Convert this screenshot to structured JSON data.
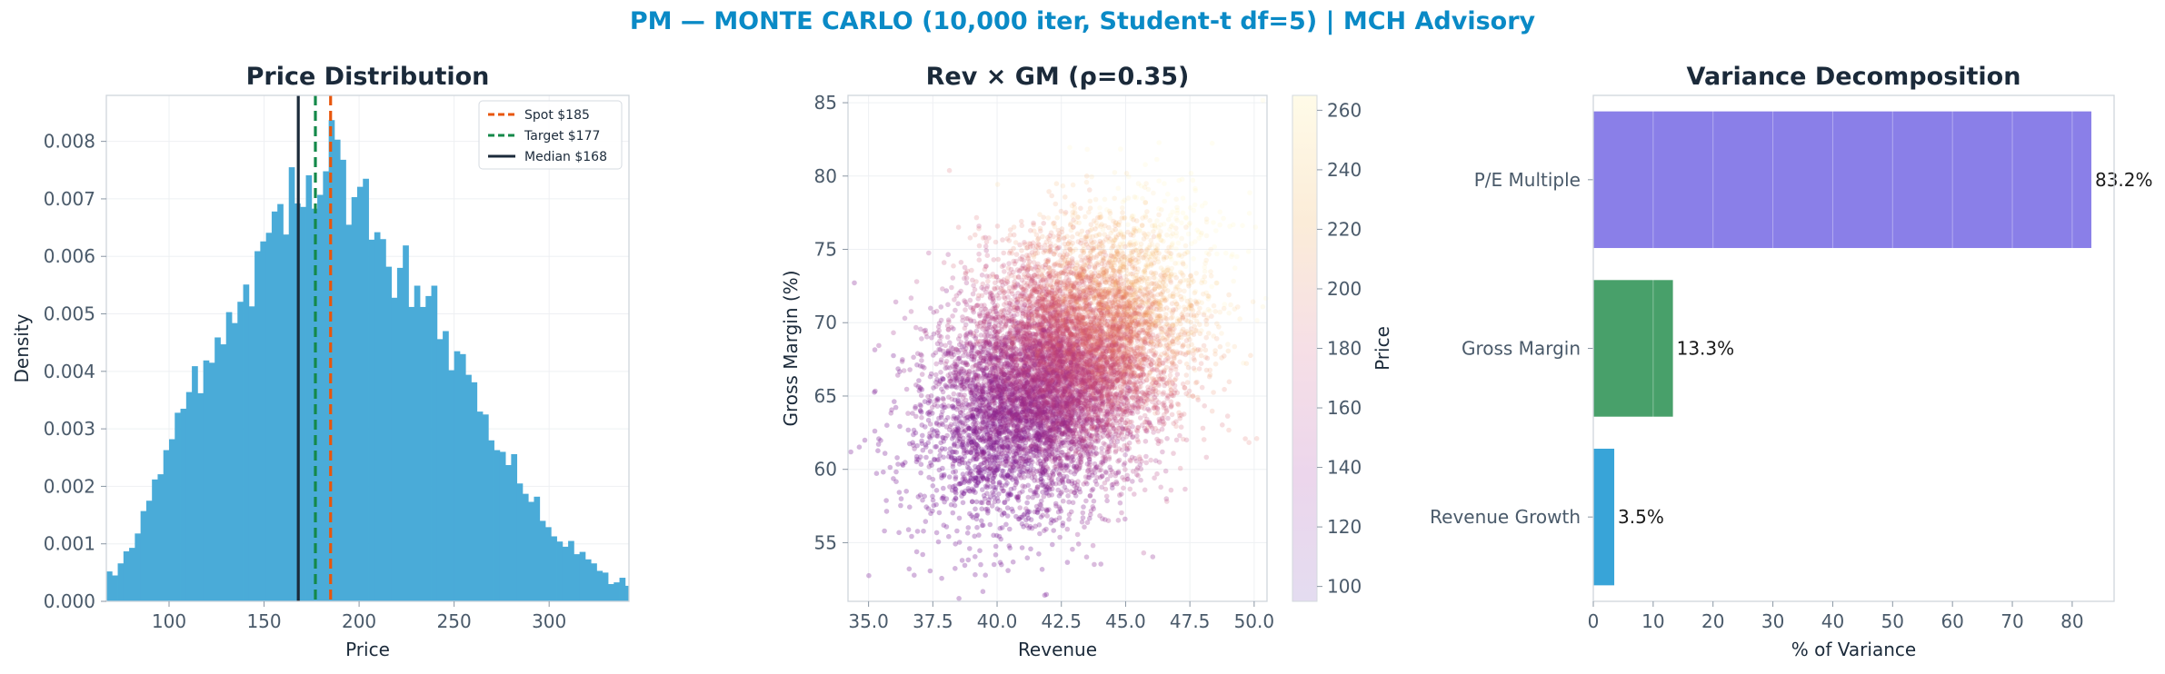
{
  "suptitle": "PM — MONTE CARLO (10,000 iter, Student-t df=5) | MCH Advisory",
  "colors": {
    "suptitle": "#0a8ac6",
    "title": "#1b2a3a",
    "tick": "#4a5a6a",
    "hist": "#4aabd8",
    "spot": "#e8560c",
    "target": "#14894a",
    "median": "#1b2a3a",
    "bar_pe": "#8a7fe8",
    "bar_gm": "#48a06a",
    "bar_rev": "#38a4d8"
  },
  "chart_data": [
    {
      "type": "histogram",
      "title": "Price Distribution",
      "xlabel": "Price",
      "ylabel": "Density",
      "xlim": [
        67,
        342
      ],
      "ylim": [
        0,
        0.0088
      ],
      "xticks": [
        100,
        150,
        200,
        250,
        300
      ],
      "yticks": [
        0.0,
        0.001,
        0.002,
        0.003,
        0.004,
        0.005,
        0.006,
        0.007,
        0.008
      ],
      "ytick_labels": [
        "0.000",
        "0.001",
        "0.002",
        "0.003",
        "0.004",
        "0.005",
        "0.006",
        "0.007",
        "0.008"
      ],
      "bin_start": 67,
      "bin_width": 3.0,
      "densities": [
        0.00052,
        0.00045,
        0.00066,
        0.00087,
        0.00093,
        0.00118,
        0.00157,
        0.00175,
        0.00212,
        0.00221,
        0.00263,
        0.00282,
        0.00328,
        0.00335,
        0.00364,
        0.00409,
        0.00362,
        0.00419,
        0.00415,
        0.00459,
        0.00447,
        0.00503,
        0.00484,
        0.00521,
        0.00551,
        0.00513,
        0.00609,
        0.00626,
        0.00641,
        0.00678,
        0.00691,
        0.00638,
        0.00755,
        0.00692,
        0.00686,
        0.00741,
        0.00683,
        0.00707,
        0.00748,
        0.00837,
        0.00803,
        0.00768,
        0.00655,
        0.00703,
        0.00721,
        0.00735,
        0.00629,
        0.00642,
        0.0063,
        0.00582,
        0.00528,
        0.0058,
        0.00619,
        0.00512,
        0.00549,
        0.00512,
        0.00531,
        0.00549,
        0.00456,
        0.0047,
        0.00402,
        0.00435,
        0.0043,
        0.00394,
        0.00381,
        0.0033,
        0.00325,
        0.0028,
        0.00263,
        0.0026,
        0.00237,
        0.00256,
        0.00205,
        0.00187,
        0.00173,
        0.00182,
        0.0014,
        0.00129,
        0.00113,
        0.00104,
        0.00095,
        0.00105,
        0.00082,
        0.00086,
        0.00073,
        0.00066,
        0.00053,
        0.0005,
        0.0003,
        0.00033,
        0.00041,
        0.00027,
        0.00019
      ],
      "vlines": [
        {
          "label": "Spot $185",
          "x": 185,
          "style": "dashed",
          "color_key": "spot"
        },
        {
          "label": "Target $177",
          "x": 177,
          "style": "dashed",
          "color_key": "target"
        },
        {
          "label": "Median $168",
          "x": 168,
          "style": "solid",
          "color_key": "median"
        }
      ],
      "legend": "top-right",
      "grid": true
    },
    {
      "type": "scatter",
      "title": "Rev × GM (ρ=0.35)",
      "xlabel": "Revenue",
      "ylabel": "Gross Margin (%)",
      "xlim": [
        34.2,
        50.5
      ],
      "ylim": [
        51,
        85.5
      ],
      "xticks": [
        35.0,
        37.5,
        40.0,
        42.5,
        45.0,
        47.5,
        50.0
      ],
      "xtick_labels": [
        "35.0",
        "37.5",
        "40.0",
        "42.5",
        "45.0",
        "47.5",
        "50.0"
      ],
      "yticks": [
        55,
        60,
        65,
        70,
        75,
        80,
        85
      ],
      "n_points": 10000,
      "x_mean": 42.5,
      "x_sd": 2.4,
      "y_mean": 67,
      "y_sd": 4.5,
      "rho": 0.35,
      "colorbar": {
        "label": "Price",
        "min": 95,
        "max": 265,
        "ticks": [
          100,
          120,
          140,
          160,
          180,
          200,
          220,
          240,
          260
        ],
        "colormap": "magma-light"
      },
      "grid": true
    },
    {
      "type": "bar-horizontal",
      "title": "Variance Decomposition",
      "xlabel": "% of Variance",
      "xlim": [
        0,
        87
      ],
      "xticks": [
        0,
        10,
        20,
        30,
        40,
        50,
        60,
        70,
        80
      ],
      "categories": [
        "P/E Multiple",
        "Gross Margin",
        "Revenue Growth"
      ],
      "values": [
        83.2,
        13.3,
        3.5
      ],
      "value_labels": [
        "83.2%",
        "13.3%",
        "3.5%"
      ],
      "bar_color_keys": [
        "bar_pe",
        "bar_gm",
        "bar_rev"
      ],
      "grid": true
    }
  ]
}
